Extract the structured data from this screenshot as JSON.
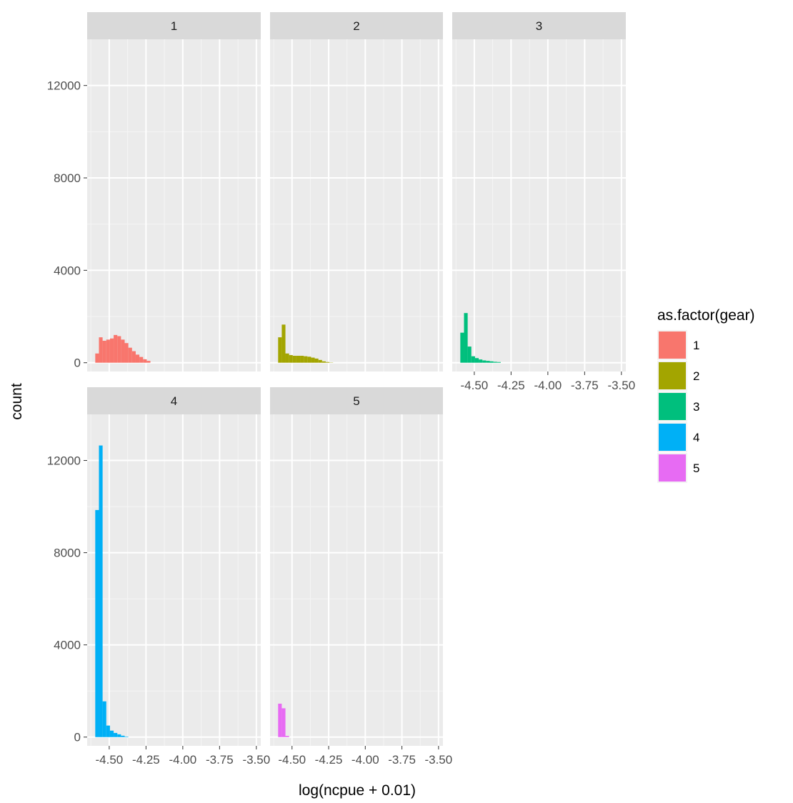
{
  "chart_data": {
    "type": "bar",
    "subtype": "faceted-histogram",
    "xlabel": "log(ncpue + 0.01)",
    "ylabel": "count",
    "xlim": [
      -4.65,
      -3.47
    ],
    "ylim": [
      -380,
      14000
    ],
    "x_ticks": [
      -4.5,
      -4.25,
      -4.0,
      -3.75,
      -3.5
    ],
    "x_tick_labels": [
      "-4.50",
      "-4.25",
      "-4.00",
      "-3.75",
      "-3.50"
    ],
    "y_ticks": [
      0,
      4000,
      8000,
      12000
    ],
    "y_tick_labels": [
      "0",
      "4000",
      "8000",
      "12000"
    ],
    "grid": true,
    "facet_layout": "3 columns, 2 rows",
    "legend": {
      "title": "as.factor(gear)",
      "position": "right",
      "entries": [
        {
          "label": "1",
          "color": "#F8766D"
        },
        {
          "label": "2",
          "color": "#A3A500"
        },
        {
          "label": "3",
          "color": "#00BF7D"
        },
        {
          "label": "4",
          "color": "#00B0F6"
        },
        {
          "label": "5",
          "color": "#E76BF3"
        }
      ]
    },
    "bin_width": 0.025,
    "facets": [
      {
        "strip": "1",
        "color": "#F8766D",
        "bin_start": -4.595,
        "values": [
          400,
          1100,
          950,
          1000,
          1050,
          1200,
          1150,
          1000,
          850,
          650,
          500,
          350,
          250,
          150,
          80
        ]
      },
      {
        "strip": "2",
        "color": "#A3A500",
        "bin_start": -4.595,
        "values": [
          1100,
          1650,
          400,
          330,
          300,
          300,
          300,
          280,
          260,
          220,
          180,
          120,
          60,
          30,
          10
        ]
      },
      {
        "strip": "3",
        "color": "#00BF7D",
        "bin_start": -4.595,
        "values": [
          1300,
          2150,
          700,
          280,
          200,
          140,
          100,
          80,
          60,
          40,
          30
        ]
      },
      {
        "strip": "4",
        "color": "#00B0F6",
        "bin_start": -4.595,
        "values": [
          9850,
          12650,
          1550,
          500,
          280,
          180,
          120,
          60,
          20
        ]
      },
      {
        "strip": "5",
        "color": "#E76BF3",
        "bin_start": -4.595,
        "values": [
          1450,
          1250,
          50
        ]
      }
    ]
  }
}
